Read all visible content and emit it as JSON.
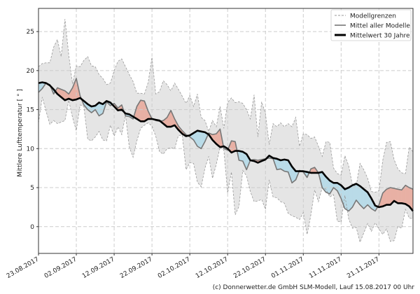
{
  "chart_data": {
    "type": "line",
    "title": "",
    "xlabel": "",
    "ylabel": "Mittlere Lufttemperatur [ ° ]",
    "ylim": [
      -3.43,
      27.97
    ],
    "xlim_days": [
      0,
      99
    ],
    "x_start_date": "23.08.2017",
    "x_tick_days": [
      0,
      10,
      20,
      30,
      40,
      50,
      60,
      70,
      80,
      90
    ],
    "x_tick_labels": [
      "23.08.2017",
      "02.09.2017",
      "12.09.2017",
      "22.09.2017",
      "02.10.2017",
      "12.10.2017",
      "22.10.2017",
      "01.11.2017",
      "11.11.2017",
      "21.11.2017"
    ],
    "y_ticks": [
      0,
      5,
      10,
      15,
      20,
      25
    ],
    "grid": true,
    "legend_position": "top-right",
    "legend": [
      "Modellgrenzen",
      "Mittel aller Modelle",
      "Mittelwert 30 Jahre"
    ],
    "colors": {
      "band": "#e5e5e5",
      "band_edge": "#999999",
      "model": "#777777",
      "climate": "#000000",
      "above": "#e8b0a4",
      "below": "#b9dbe8",
      "grid": "#cccccc"
    },
    "series": [
      {
        "name": "Modellgrenzen (oben)",
        "values": [
          20.5,
          20.9,
          21,
          21,
          23,
          24,
          21.8,
          26.6,
          22,
          18.3,
          20.6,
          20.5,
          21.3,
          21.8,
          20.6,
          20.5,
          19.5,
          19,
          18.2,
          18.4,
          20,
          21.2,
          21.5,
          20.5,
          19.5,
          18.6,
          17.1,
          17.1,
          17.0,
          18.5,
          21.7,
          17.0,
          17.3,
          18.7,
          18.2,
          17.4,
          18.4,
          17.6,
          16.7,
          15.8,
          16.8,
          15.4,
          17.0,
          14.0,
          13.6,
          12.2,
          13.6,
          12.8,
          15.4,
          12.6,
          15.9,
          16.5,
          15.9,
          16.0,
          15.8,
          15.0,
          13.8,
          16.9,
          11.5,
          16.0,
          14.5,
          10.5,
          13.2,
          12.8,
          13.3,
          12.8,
          13.2,
          12.8,
          14.0,
          10.3,
          11.9,
          11.8,
          11.3,
          11.5,
          10.3,
          9.0,
          10.9,
          10.8,
          7.5,
          6.8,
          6.6,
          9.1,
          7.8,
          5.3,
          5.2,
          8.1,
          7.3,
          6.2,
          4.5,
          4.4,
          4.6,
          8.5,
          10.8,
          10.9,
          8.6,
          7.4,
          6.9,
          6.8,
          10.2,
          9.6
        ]
      },
      {
        "name": "Modellgrenzen (unten)",
        "values": [
          13.3,
          16.6,
          14.8,
          13.1,
          13.6,
          13.2,
          13.4,
          13.6,
          16.2,
          14.0,
          12.3,
          15.6,
          15.4,
          11.2,
          11.0,
          11.5,
          12.2,
          11.1,
          11.0,
          13.0,
          11.6,
          12.8,
          11.8,
          14.3,
          10.2,
          8.9,
          11.0,
          12.6,
          13.0,
          13.3,
          12.9,
          11.6,
          9.6,
          9.3,
          10.0,
          10.1,
          10.0,
          11.7,
          11.7,
          7.3,
          8.2,
          8.1,
          5.7,
          5.1,
          7.5,
          9.0,
          6.2,
          8.0,
          10.2,
          9.8,
          4.3,
          7.0,
          1.5,
          2.6,
          7.2,
          6.5,
          4.5,
          3.2,
          3.3,
          3.5,
          2.2,
          6.0,
          3.8,
          3.7,
          3.2,
          3.0,
          1.7,
          1.4,
          1.2,
          0.9,
          1.8,
          -1.0,
          1.5,
          4.7,
          3.2,
          5.0,
          4.8,
          3.8,
          4.1,
          0.7,
          0.6,
          4.0,
          1.0,
          -0.2,
          -0.1,
          -2.0,
          -0.8,
          0.4,
          -0.6,
          0.5,
          -0.3,
          -1.0,
          -0.3,
          -1.9,
          -1.8,
          0.0,
          -0.2,
          2.2,
          1.1,
          1.0
        ]
      },
      {
        "name": "Mittel aller Modelle",
        "values": [
          17.2,
          17.7,
          18.4,
          18.2,
          17.0,
          17.8,
          17.6,
          17.4,
          17.0,
          17.8,
          19.0,
          16.8,
          15.6,
          15.0,
          14.6,
          15.0,
          14.2,
          14.5,
          16.0,
          15.5,
          15.8,
          15.2,
          15.6,
          14.2,
          14.1,
          13.8,
          15.4,
          16.2,
          16.1,
          14.8,
          13.8,
          13.6,
          13.5,
          13.6,
          14.0,
          14.9,
          13.8,
          12.9,
          12.3,
          11.8,
          11.5,
          11.1,
          10.3,
          10.0,
          10.9,
          12.0,
          11.8,
          11.9,
          12.5,
          10.0,
          9.8,
          11.0,
          10.9,
          8.5,
          8.4,
          7.3,
          8.5,
          8.6,
          8.5,
          8.6,
          8.7,
          8.8,
          8.7,
          7.3,
          7.4,
          7.1,
          7.0,
          5.6,
          6.0,
          7.2,
          7.0,
          6.3,
          7.4,
          7.6,
          6.9,
          5.0,
          4.4,
          4.2,
          5.0,
          4.6,
          3.6,
          2.3,
          2.0,
          2.5,
          3.4,
          2.8,
          2.3,
          2.8,
          2.3,
          2.0,
          2.8,
          4.3,
          4.8,
          5.0,
          4.9,
          4.8,
          4.7,
          5.3,
          5.0,
          4.8
        ]
      },
      {
        "name": "Mittelwert 30 Jahre",
        "values": [
          18.4,
          18.5,
          18.4,
          18.1,
          17.6,
          17.0,
          16.6,
          16.2,
          16.4,
          16.2,
          16.3,
          16.5,
          16.1,
          15.7,
          15.4,
          15.5,
          15.9,
          15.7,
          16.1,
          15.9,
          15.4,
          14.9,
          15.0,
          14.5,
          14.4,
          14.1,
          13.8,
          13.5,
          13.5,
          13.8,
          13.8,
          13.7,
          13.6,
          13.2,
          12.8,
          12.8,
          13.0,
          12.4,
          11.9,
          11.6,
          11.7,
          12.0,
          12.3,
          12.2,
          12.1,
          11.8,
          11.1,
          10.6,
          10.2,
          10.3,
          10.0,
          9.5,
          9.7,
          9.7,
          9.6,
          9.3,
          8.5,
          8.4,
          8.2,
          8.4,
          8.6,
          9.1,
          8.8,
          8.7,
          8.5,
          8.6,
          8.5,
          7.7,
          7.1,
          7.1,
          7.1,
          7.0,
          6.9,
          6.9,
          6.9,
          7.0,
          6.4,
          5.9,
          5.6,
          5.6,
          5.3,
          4.8,
          5.0,
          5.3,
          5.5,
          5.2,
          4.8,
          4.4,
          3.6,
          2.7,
          2.5,
          2.6,
          2.8,
          2.8,
          3.3,
          3.0,
          3.0,
          2.9,
          2.6,
          2.0
        ]
      }
    ]
  },
  "footer": "(c) Donnerwetter.de GmbH SLM-Modell, Lauf 15.08.2017 00 Uhr"
}
